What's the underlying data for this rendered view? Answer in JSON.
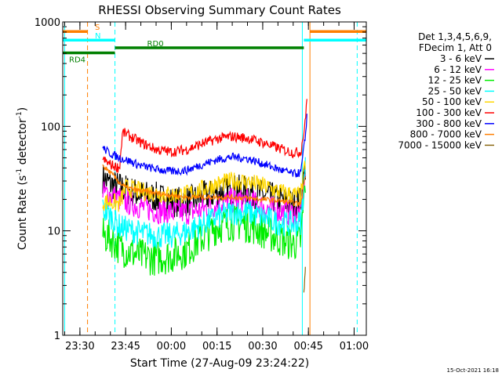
{
  "chart_data": {
    "type": "line",
    "title": "RHESSI Observing Summary Count Rates",
    "xlabel": "Start Time (27-Aug-09 23:24:22)",
    "ylabel_main": "Count Rate (s",
    "ylabel_sup1": "-1",
    "ylabel_mid": " detector",
    "ylabel_sup2": "-1",
    "ylabel_end": ")",
    "y_scale": "log",
    "ylim": [
      1,
      1000
    ],
    "xlim": [
      "23:24:22",
      "01:04:00"
    ],
    "x_ticks": [
      {
        "t": "23:30",
        "label": "23:30"
      },
      {
        "t": "23:45",
        "label": "23:45"
      },
      {
        "t": "00:00",
        "label": "00:00"
      },
      {
        "t": "00:15",
        "label": "00:15"
      },
      {
        "t": "00:30",
        "label": "00:30"
      },
      {
        "t": "00:45",
        "label": "00:45"
      },
      {
        "t": "01:00",
        "label": "01:00"
      }
    ],
    "y_ticks": [
      {
        "value": 1,
        "label": "1"
      },
      {
        "value": 10,
        "label": "10"
      },
      {
        "value": 100,
        "label": "100"
      },
      {
        "value": 1000,
        "label": "1000"
      }
    ],
    "legend_header": [
      "Det 1,3,4,5,6,9,",
      "FDecim 1, Att 0"
    ],
    "legend_placement": "right",
    "series": [
      {
        "name": "3 - 6 keV",
        "color": "#000000",
        "noise": 0.3,
        "points": [
          [
            "23:37:30",
            32
          ],
          [
            "23:40",
            28
          ],
          [
            "23:45",
            25
          ],
          [
            "23:50",
            22
          ],
          [
            "23:55",
            21
          ],
          [
            "00:00",
            19
          ],
          [
            "00:05",
            19
          ],
          [
            "00:10",
            21
          ],
          [
            "00:15",
            23
          ],
          [
            "00:20",
            25
          ],
          [
            "00:25",
            24
          ],
          [
            "00:30",
            22
          ],
          [
            "00:35",
            20
          ],
          [
            "00:40",
            18
          ],
          [
            "00:42:30",
            19
          ],
          [
            "00:44",
            40
          ]
        ]
      },
      {
        "name": "6 - 12 keV",
        "color": "#ff00ff",
        "noise": 0.25,
        "points": [
          [
            "23:37:30",
            23
          ],
          [
            "23:40",
            22
          ],
          [
            "23:45",
            19
          ],
          [
            "23:50",
            17
          ],
          [
            "23:55",
            15.5
          ],
          [
            "00:00",
            15
          ],
          [
            "00:05",
            15
          ],
          [
            "00:10",
            16
          ],
          [
            "00:15",
            18
          ],
          [
            "00:20",
            19.5
          ],
          [
            "00:25",
            19.5
          ],
          [
            "00:30",
            17
          ],
          [
            "00:35",
            15.5
          ],
          [
            "00:40",
            14.5
          ],
          [
            "00:42:30",
            15
          ],
          [
            "00:44",
            35
          ]
        ]
      },
      {
        "name": "12 - 25 keV",
        "color": "#00ee00",
        "noise": 0.35,
        "points": [
          [
            "23:37:30",
            9
          ],
          [
            "23:40",
            8.5
          ],
          [
            "23:43",
            7
          ],
          [
            "23:45",
            6.5
          ],
          [
            "23:50",
            5.7
          ],
          [
            "23:55",
            5.5
          ],
          [
            "00:00",
            5.8
          ],
          [
            "00:05",
            6.5
          ],
          [
            "00:10",
            8.5
          ],
          [
            "00:15",
            11
          ],
          [
            "00:20",
            12
          ],
          [
            "00:25",
            11.5
          ],
          [
            "00:30",
            10
          ],
          [
            "00:35",
            8.5
          ],
          [
            "00:40",
            7.5
          ],
          [
            "00:42:30",
            8
          ],
          [
            "00:44",
            30
          ]
        ]
      },
      {
        "name": "25 - 50 keV",
        "color": "#00ffff",
        "noise": 0.25,
        "points": [
          [
            "23:37:30",
            16
          ],
          [
            "23:40",
            14
          ],
          [
            "23:43",
            11
          ],
          [
            "23:45",
            10.5
          ],
          [
            "23:50",
            9.5
          ],
          [
            "23:55",
            9
          ],
          [
            "00:00",
            9
          ],
          [
            "00:05",
            9.8
          ],
          [
            "00:10",
            11.5
          ],
          [
            "00:15",
            13.5
          ],
          [
            "00:20",
            15
          ],
          [
            "00:25",
            15
          ],
          [
            "00:30",
            13.5
          ],
          [
            "00:35",
            12
          ],
          [
            "00:40",
            11.5
          ],
          [
            "00:42:30",
            12
          ],
          [
            "00:44",
            40
          ]
        ]
      },
      {
        "name": "50 - 100 keV",
        "color": "#ffd700",
        "noise": 0.18,
        "points": [
          [
            "23:37:30",
            19
          ],
          [
            "23:40",
            19
          ],
          [
            "23:43",
            18
          ],
          [
            "23:45",
            26
          ],
          [
            "23:50",
            24
          ],
          [
            "23:55",
            23
          ],
          [
            "00:00",
            22
          ],
          [
            "00:05",
            22.5
          ],
          [
            "00:10",
            25
          ],
          [
            "00:15",
            28
          ],
          [
            "00:20",
            30
          ],
          [
            "00:25",
            29.5
          ],
          [
            "00:30",
            27
          ],
          [
            "00:35",
            24
          ],
          [
            "00:40",
            22
          ],
          [
            "00:42:30",
            22
          ],
          [
            "00:44",
            45
          ]
        ]
      },
      {
        "name": "100 - 300 keV",
        "color": "#ff0000",
        "noise": 0.1,
        "points": [
          [
            "23:37:30",
            48
          ],
          [
            "23:40",
            43
          ],
          [
            "23:43",
            40
          ],
          [
            "23:44",
            88
          ],
          [
            "23:45",
            85
          ],
          [
            "23:50",
            70
          ],
          [
            "23:55",
            60
          ],
          [
            "00:00",
            57
          ],
          [
            "00:05",
            60
          ],
          [
            "00:10",
            68
          ],
          [
            "00:15",
            76
          ],
          [
            "00:20",
            80
          ],
          [
            "00:25",
            77
          ],
          [
            "00:30",
            70
          ],
          [
            "00:35",
            62
          ],
          [
            "00:40",
            56
          ],
          [
            "00:42:30",
            57
          ],
          [
            "00:44",
            110
          ],
          [
            "00:44:30",
            200
          ]
        ]
      },
      {
        "name": "300 - 800 keV",
        "color": "#0000ff",
        "noise": 0.08,
        "points": [
          [
            "23:37:30",
            62
          ],
          [
            "23:40",
            55
          ],
          [
            "23:43",
            50
          ],
          [
            "23:45",
            48
          ],
          [
            "23:50",
            42
          ],
          [
            "23:55",
            39
          ],
          [
            "00:00",
            37
          ],
          [
            "00:05",
            38
          ],
          [
            "00:10",
            43
          ],
          [
            "00:15",
            48
          ],
          [
            "00:20",
            51
          ],
          [
            "00:25",
            49
          ],
          [
            "00:30",
            44
          ],
          [
            "00:35",
            39
          ],
          [
            "00:40",
            35
          ],
          [
            "00:42:30",
            36
          ],
          [
            "00:44",
            80
          ],
          [
            "00:44:30",
            130
          ]
        ]
      },
      {
        "name": "800 - 7000 keV",
        "color": "#ff7f00",
        "noise": 0.05,
        "points": [
          [
            "23:37:30",
            42
          ],
          [
            "23:40",
            36
          ],
          [
            "23:43",
            29
          ],
          [
            "23:45",
            26
          ],
          [
            "23:50",
            24
          ],
          [
            "23:55",
            23
          ],
          [
            "00:00",
            22
          ],
          [
            "00:05",
            21
          ],
          [
            "00:10",
            21
          ],
          [
            "00:15",
            21
          ],
          [
            "00:20",
            21
          ],
          [
            "00:25",
            20.5
          ],
          [
            "00:30",
            20
          ],
          [
            "00:35",
            19.5
          ],
          [
            "00:40",
            18.5
          ],
          [
            "00:42:30",
            18
          ],
          [
            "00:44",
            35
          ]
        ]
      },
      {
        "name": "7000 - 15000 keV",
        "color": "#8b6914",
        "noise": 0.03,
        "points": [
          [
            "00:43:30",
            2.5
          ],
          [
            "00:44",
            4.5
          ]
        ]
      }
    ],
    "annotation_bars": [
      {
        "label": "S",
        "color": "#ff7f00",
        "y": 810,
        "segments": [
          [
            "23:24:22",
            "23:32:30"
          ],
          [
            "00:45:30",
            "01:04:00"
          ]
        ]
      },
      {
        "label": "N",
        "color": "#00ffff",
        "y": 670,
        "segments": [
          [
            "23:24:22",
            "23:41:30"
          ],
          [
            "00:43:30",
            "01:04:00"
          ]
        ]
      },
      {
        "label": "RD0",
        "color": "#008000",
        "y": 565,
        "segments": [
          [
            "23:41:30",
            "00:43:30"
          ]
        ]
      },
      {
        "label": "RD4",
        "color": "#008000",
        "y": 505,
        "segments": [
          [
            "23:24:22",
            "23:41:30"
          ]
        ]
      }
    ],
    "vertical_markers": [
      {
        "t": "23:25:00",
        "color": "#00ffff",
        "dash": false
      },
      {
        "t": "23:32:30",
        "color": "#ff7f00",
        "dash": true
      },
      {
        "t": "23:41:30",
        "color": "#00ffff",
        "dash": true
      },
      {
        "t": "00:43:00",
        "color": "#00ffff",
        "dash": false
      },
      {
        "t": "00:45:30",
        "color": "#ff7f00",
        "dash": false
      },
      {
        "t": "01:01:00",
        "color": "#00ffff",
        "dash": true
      }
    ]
  },
  "footer_date": "15-Oct-2021 16:18"
}
